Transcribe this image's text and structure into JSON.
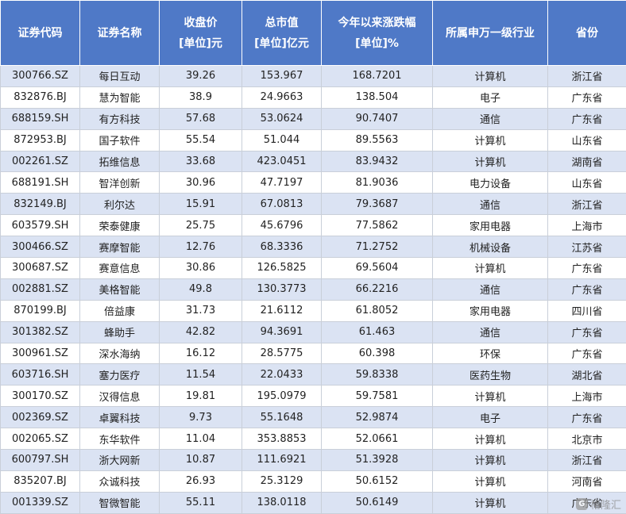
{
  "table": {
    "headers": [
      {
        "line1": "证券代码",
        "line2": ""
      },
      {
        "line1": "证券名称",
        "line2": ""
      },
      {
        "line1": "收盘价",
        "line2": "[单位]元"
      },
      {
        "line1": "总市值",
        "line2": "[单位]亿元"
      },
      {
        "line1": "今年以来涨跌幅",
        "line2": "[单位]%"
      },
      {
        "line1": "所属申万一级行业",
        "line2": ""
      },
      {
        "line1": "省份",
        "line2": ""
      }
    ],
    "rows": [
      [
        "300766.SZ",
        "每日互动",
        "39.26",
        "153.967",
        "168.7201",
        "计算机",
        "浙江省"
      ],
      [
        "832876.BJ",
        "慧为智能",
        "38.9",
        "24.9663",
        "138.504",
        "电子",
        "广东省"
      ],
      [
        "688159.SH",
        "有方科技",
        "57.68",
        "53.0624",
        "90.7407",
        "通信",
        "广东省"
      ],
      [
        "872953.BJ",
        "国子软件",
        "55.54",
        "51.044",
        "89.5563",
        "计算机",
        "山东省"
      ],
      [
        "002261.SZ",
        "拓维信息",
        "33.68",
        "423.0451",
        "83.9432",
        "计算机",
        "湖南省"
      ],
      [
        "688191.SH",
        "智洋创新",
        "30.96",
        "47.7197",
        "81.9036",
        "电力设备",
        "山东省"
      ],
      [
        "832149.BJ",
        "利尔达",
        "15.91",
        "67.0813",
        "79.3687",
        "通信",
        "浙江省"
      ],
      [
        "603579.SH",
        "荣泰健康",
        "25.75",
        "45.6796",
        "77.5862",
        "家用电器",
        "上海市"
      ],
      [
        "300466.SZ",
        "赛摩智能",
        "12.76",
        "68.3336",
        "71.2752",
        "机械设备",
        "江苏省"
      ],
      [
        "300687.SZ",
        "赛意信息",
        "30.86",
        "126.5825",
        "69.5604",
        "计算机",
        "广东省"
      ],
      [
        "002881.SZ",
        "美格智能",
        "49.8",
        "130.3773",
        "66.2216",
        "通信",
        "广东省"
      ],
      [
        "870199.BJ",
        "倍益康",
        "31.73",
        "21.6112",
        "61.8052",
        "家用电器",
        "四川省"
      ],
      [
        "301382.SZ",
        "蜂助手",
        "42.82",
        "94.3691",
        "61.463",
        "通信",
        "广东省"
      ],
      [
        "300961.SZ",
        "深水海纳",
        "16.12",
        "28.5775",
        "60.398",
        "环保",
        "广东省"
      ],
      [
        "603716.SH",
        "塞力医疗",
        "11.54",
        "22.0433",
        "59.8338",
        "医药生物",
        "湖北省"
      ],
      [
        "300170.SZ",
        "汉得信息",
        "19.81",
        "195.0979",
        "59.7581",
        "计算机",
        "上海市"
      ],
      [
        "002369.SZ",
        "卓翼科技",
        "9.73",
        "55.1648",
        "52.9874",
        "电子",
        "广东省"
      ],
      [
        "002065.SZ",
        "东华软件",
        "11.04",
        "353.8853",
        "52.0661",
        "计算机",
        "北京市"
      ],
      [
        "600797.SH",
        "浙大网新",
        "10.87",
        "111.6921",
        "51.3928",
        "计算机",
        "浙江省"
      ],
      [
        "835207.BJ",
        "众诚科技",
        "26.93",
        "25.3129",
        "50.6152",
        "计算机",
        "河南省"
      ],
      [
        "001339.SZ",
        "智微智能",
        "55.11",
        "138.0118",
        "50.6149",
        "计算机",
        "广东省"
      ]
    ]
  },
  "watermark": {
    "icon_glyph": "G",
    "text": "格隆汇"
  }
}
